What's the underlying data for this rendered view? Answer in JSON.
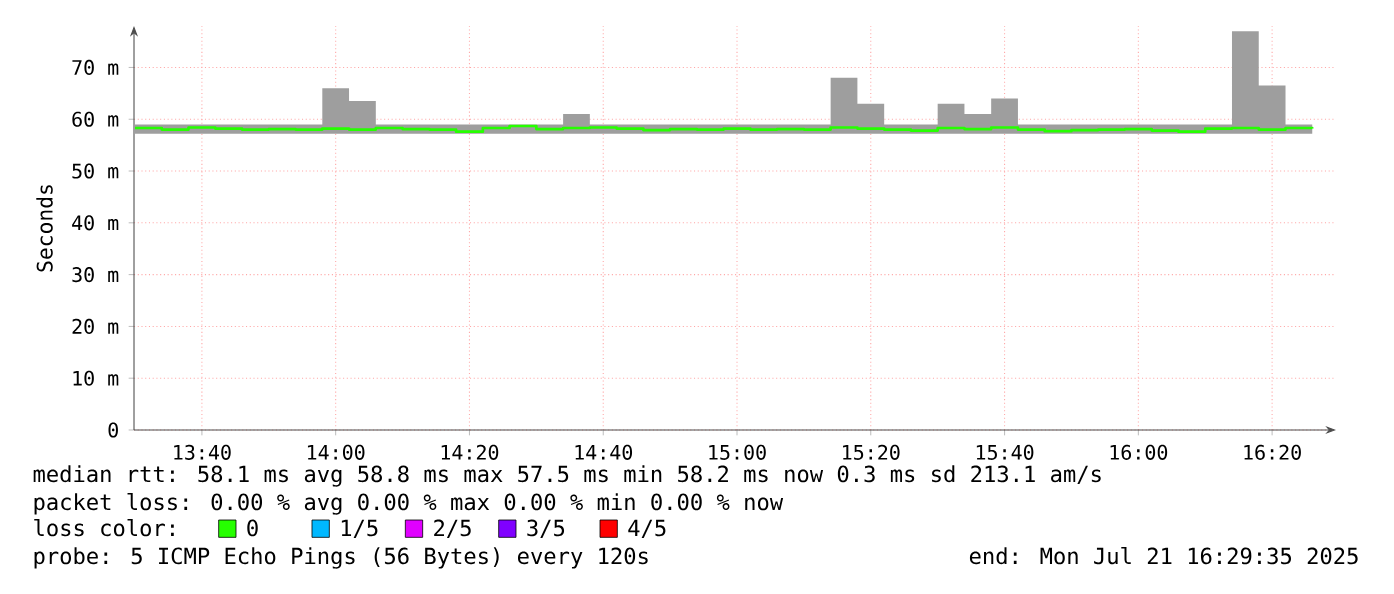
{
  "chart_data": {
    "type": "step",
    "ylabel": "Seconds",
    "x": [
      13.5,
      13.5667,
      13.6333,
      13.7,
      13.7667,
      13.8333,
      13.9,
      13.9667,
      14.0333,
      14.1,
      14.1667,
      14.2333,
      14.3,
      14.3667,
      14.4333,
      14.5,
      14.5667,
      14.6333,
      14.7,
      14.7667,
      14.8333,
      14.9,
      14.9667,
      15.0333,
      15.1,
      15.1667,
      15.2333,
      15.3,
      15.3667,
      15.4333,
      15.5,
      15.5667,
      15.6333,
      15.7,
      15.7667,
      15.8333,
      15.9,
      15.9667,
      16.0333,
      16.1,
      16.1667,
      16.2333,
      16.3,
      16.3667,
      16.4333
    ],
    "xlim": [
      13.4975,
      16.4925
    ],
    "xticks": [
      {
        "value": 13.6667,
        "label": "13:40"
      },
      {
        "value": 14,
        "label": "14:00"
      },
      {
        "value": 14.3333,
        "label": "14:20"
      },
      {
        "value": 14.6667,
        "label": "14:40"
      },
      {
        "value": 15,
        "label": "15:00"
      },
      {
        "value": 15.3333,
        "label": "15:20"
      },
      {
        "value": 15.6667,
        "label": "15:40"
      },
      {
        "value": 16,
        "label": "16:00"
      },
      {
        "value": 16.3333,
        "label": "16:20"
      }
    ],
    "ylim": [
      0,
      78
    ],
    "yticks": [
      0,
      {
        "value": 10,
        "label": "10 m"
      },
      {
        "value": 20,
        "label": "20 m"
      },
      {
        "value": 30,
        "label": "30 m"
      },
      {
        "value": 40,
        "label": "40 m"
      },
      {
        "value": 50,
        "label": "50 m"
      },
      {
        "value": 60,
        "label": "60 m"
      },
      {
        "value": 70,
        "label": "70 m"
      }
    ],
    "grid": true,
    "legend": "bottom",
    "legend_title": "loss color:",
    "series": [
      {
        "name": "0",
        "color": "#26ff00",
        "values": [
          58.3,
          58.0,
          58.4,
          58.2,
          58.0,
          58.1,
          58.0,
          58.2,
          58.0,
          58.3,
          58.1,
          58.0,
          57.6,
          58.3,
          58.7,
          58.1,
          58.3,
          58.4,
          58.2,
          57.9,
          58.1,
          58.0,
          58.2,
          58.0,
          58.1,
          58.0,
          58.4,
          58.2,
          58.0,
          57.8,
          58.3,
          58.1,
          58.4,
          58.0,
          57.7,
          57.9,
          58.0,
          58.1,
          57.8,
          57.6,
          58.2,
          58.3,
          58.0,
          58.3,
          58.2
        ],
        "upper": [
          59,
          59,
          59,
          59,
          59,
          59,
          59,
          66,
          63.5,
          59,
          59,
          59,
          59,
          59,
          59,
          59,
          61,
          59,
          59,
          59,
          59,
          59,
          59,
          59,
          59,
          59,
          68,
          63,
          59,
          59,
          63,
          61,
          64,
          59,
          59,
          59,
          59,
          59,
          59,
          59,
          59,
          77,
          66.5,
          59,
          59
        ],
        "lower": [
          57.2,
          57.2,
          57.2,
          57.2,
          57.2,
          57.2,
          57.2,
          57.2,
          57.2,
          57.2,
          57.2,
          57.2,
          57.2,
          57.2,
          57.2,
          57.2,
          57.2,
          57.2,
          57.2,
          57.2,
          57.2,
          57.2,
          57.2,
          57.2,
          57.2,
          57.2,
          57.2,
          57.2,
          57.2,
          57.2,
          57.2,
          57.2,
          57.2,
          57.2,
          57.2,
          57.2,
          57.2,
          57.2,
          57.2,
          57.2,
          57.2,
          57.2,
          57.2,
          57.2,
          57.2
        ]
      },
      {
        "name": "1/5",
        "color": "#00b8ff",
        "values": [
          null,
          null,
          null,
          null,
          null,
          null,
          null,
          null,
          null,
          null,
          null,
          null,
          null,
          null,
          null,
          null,
          null,
          null,
          null,
          null,
          null,
          null,
          null,
          null,
          null,
          null,
          null,
          null,
          null,
          null,
          null,
          null,
          null,
          null,
          null,
          null,
          null,
          null,
          null,
          null,
          null,
          null,
          null,
          null,
          null
        ]
      },
      {
        "name": "2/5",
        "color": "#e000ff",
        "values": [
          null,
          null,
          null,
          null,
          null,
          null,
          null,
          null,
          null,
          null,
          null,
          null,
          null,
          null,
          null,
          null,
          null,
          null,
          null,
          null,
          null,
          null,
          null,
          null,
          null,
          null,
          null,
          null,
          null,
          null,
          null,
          null,
          null,
          null,
          null,
          null,
          null,
          null,
          null,
          null,
          null,
          null,
          null,
          null,
          null
        ]
      },
      {
        "name": "3/5",
        "color": "#8000ff",
        "values": [
          null,
          null,
          null,
          null,
          null,
          null,
          null,
          null,
          null,
          null,
          null,
          null,
          null,
          null,
          null,
          null,
          null,
          null,
          null,
          null,
          null,
          null,
          null,
          null,
          null,
          null,
          null,
          null,
          null,
          null,
          null,
          null,
          null,
          null,
          null,
          null,
          null,
          null,
          null,
          null,
          null,
          null,
          null,
          null,
          null
        ]
      },
      {
        "name": "4/5",
        "color": "#ff0000",
        "values": [
          null,
          null,
          null,
          null,
          null,
          null,
          null,
          null,
          null,
          null,
          null,
          null,
          null,
          null,
          null,
          null,
          null,
          null,
          null,
          null,
          null,
          null,
          null,
          null,
          null,
          null,
          null,
          null,
          null,
          null,
          null,
          null,
          null,
          null,
          null,
          null,
          null,
          null,
          null,
          null,
          null,
          null,
          null,
          null,
          null
        ]
      }
    ],
    "annotations": [
      "median rtt: 58.1 ms avg 58.8 ms max 57.5 ms min 58.2 ms now 0.3 ms sd 213.1 am/s",
      "packet loss: 0.00 % avg 0.00 % max 0.00 % min 0.00 % now",
      "probe: 5 ICMP Echo Pings (56 Bytes) every 120s",
      "end: Mon Jul 21 16:29:35 2025"
    ]
  }
}
